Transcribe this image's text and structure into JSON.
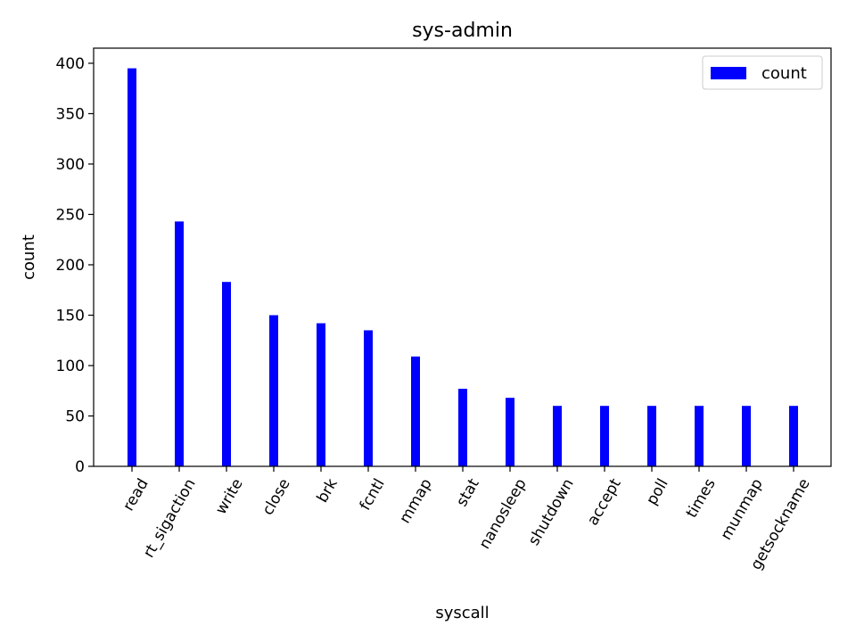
{
  "chart_data": {
    "type": "bar",
    "title": "sys-admin",
    "xlabel": "syscall",
    "ylabel": "count",
    "categories": [
      "read",
      "rt_sigaction",
      "write",
      "close",
      "brk",
      "fcntl",
      "mmap",
      "stat",
      "nanosleep",
      "shutdown",
      "accept",
      "poll",
      "times",
      "munmap",
      "getsockname"
    ],
    "series": [
      {
        "name": "count",
        "color": "#0000ff",
        "values": [
          395,
          243,
          183,
          150,
          142,
          135,
          109,
          77,
          68,
          60,
          60,
          60,
          60,
          60,
          60
        ]
      }
    ],
    "ylim": [
      0,
      415
    ],
    "yticks": [
      0,
      50,
      100,
      150,
      200,
      250,
      300,
      350,
      400
    ],
    "xtick_rotation_deg": 60,
    "grid": false,
    "legend_position": "top-right"
  }
}
